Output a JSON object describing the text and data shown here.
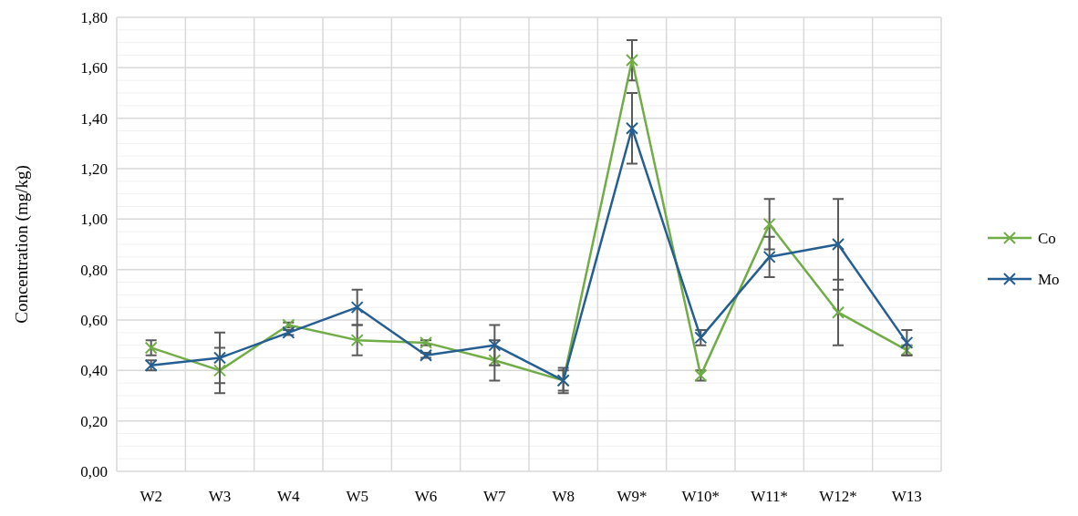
{
  "chart_data": {
    "type": "line",
    "ylabel": "Concentration (mg/kg)",
    "categories": [
      "W2",
      "W3",
      "W4",
      "W5",
      "W6",
      "W7",
      "W8",
      "W9*",
      "W10*",
      "W11*",
      "W12*",
      "W13"
    ],
    "series": [
      {
        "name": "Co",
        "color": "#70ad47",
        "values": [
          0.49,
          0.4,
          0.58,
          0.52,
          0.51,
          0.44,
          0.36,
          1.63,
          0.38,
          0.98,
          0.63,
          0.48
        ],
        "errors": [
          0.03,
          0.09,
          0.01,
          0.06,
          0.01,
          0.08,
          0.04,
          0.08,
          0.02,
          0.1,
          0.13,
          0.02
        ]
      },
      {
        "name": "Mo",
        "color": "#255e91",
        "values": [
          0.42,
          0.45,
          0.55,
          0.65,
          0.46,
          0.5,
          0.36,
          1.36,
          0.53,
          0.85,
          0.9,
          0.51
        ],
        "errors": [
          0.02,
          0.1,
          0.01,
          0.07,
          0.01,
          0.08,
          0.05,
          0.14,
          0.03,
          0.08,
          0.18,
          0.05
        ]
      }
    ],
    "ylim": [
      0,
      1.8
    ],
    "yticks": [
      {
        "value": 0,
        "label": "0,00"
      },
      {
        "value": 0.2,
        "label": "0,20"
      },
      {
        "value": 0.4,
        "label": "0,40"
      },
      {
        "value": 0.6,
        "label": "0,60"
      },
      {
        "value": 0.8,
        "label": "0,80"
      },
      {
        "value": 1.0,
        "label": "1,00"
      },
      {
        "value": 1.2,
        "label": "1,20"
      },
      {
        "value": 1.4,
        "label": "1,40"
      },
      {
        "value": 1.6,
        "label": "1,60"
      },
      {
        "value": 1.8,
        "label": "1,80"
      }
    ],
    "grid": true,
    "legend": "right",
    "marker": "cross",
    "line_style": "solid"
  }
}
